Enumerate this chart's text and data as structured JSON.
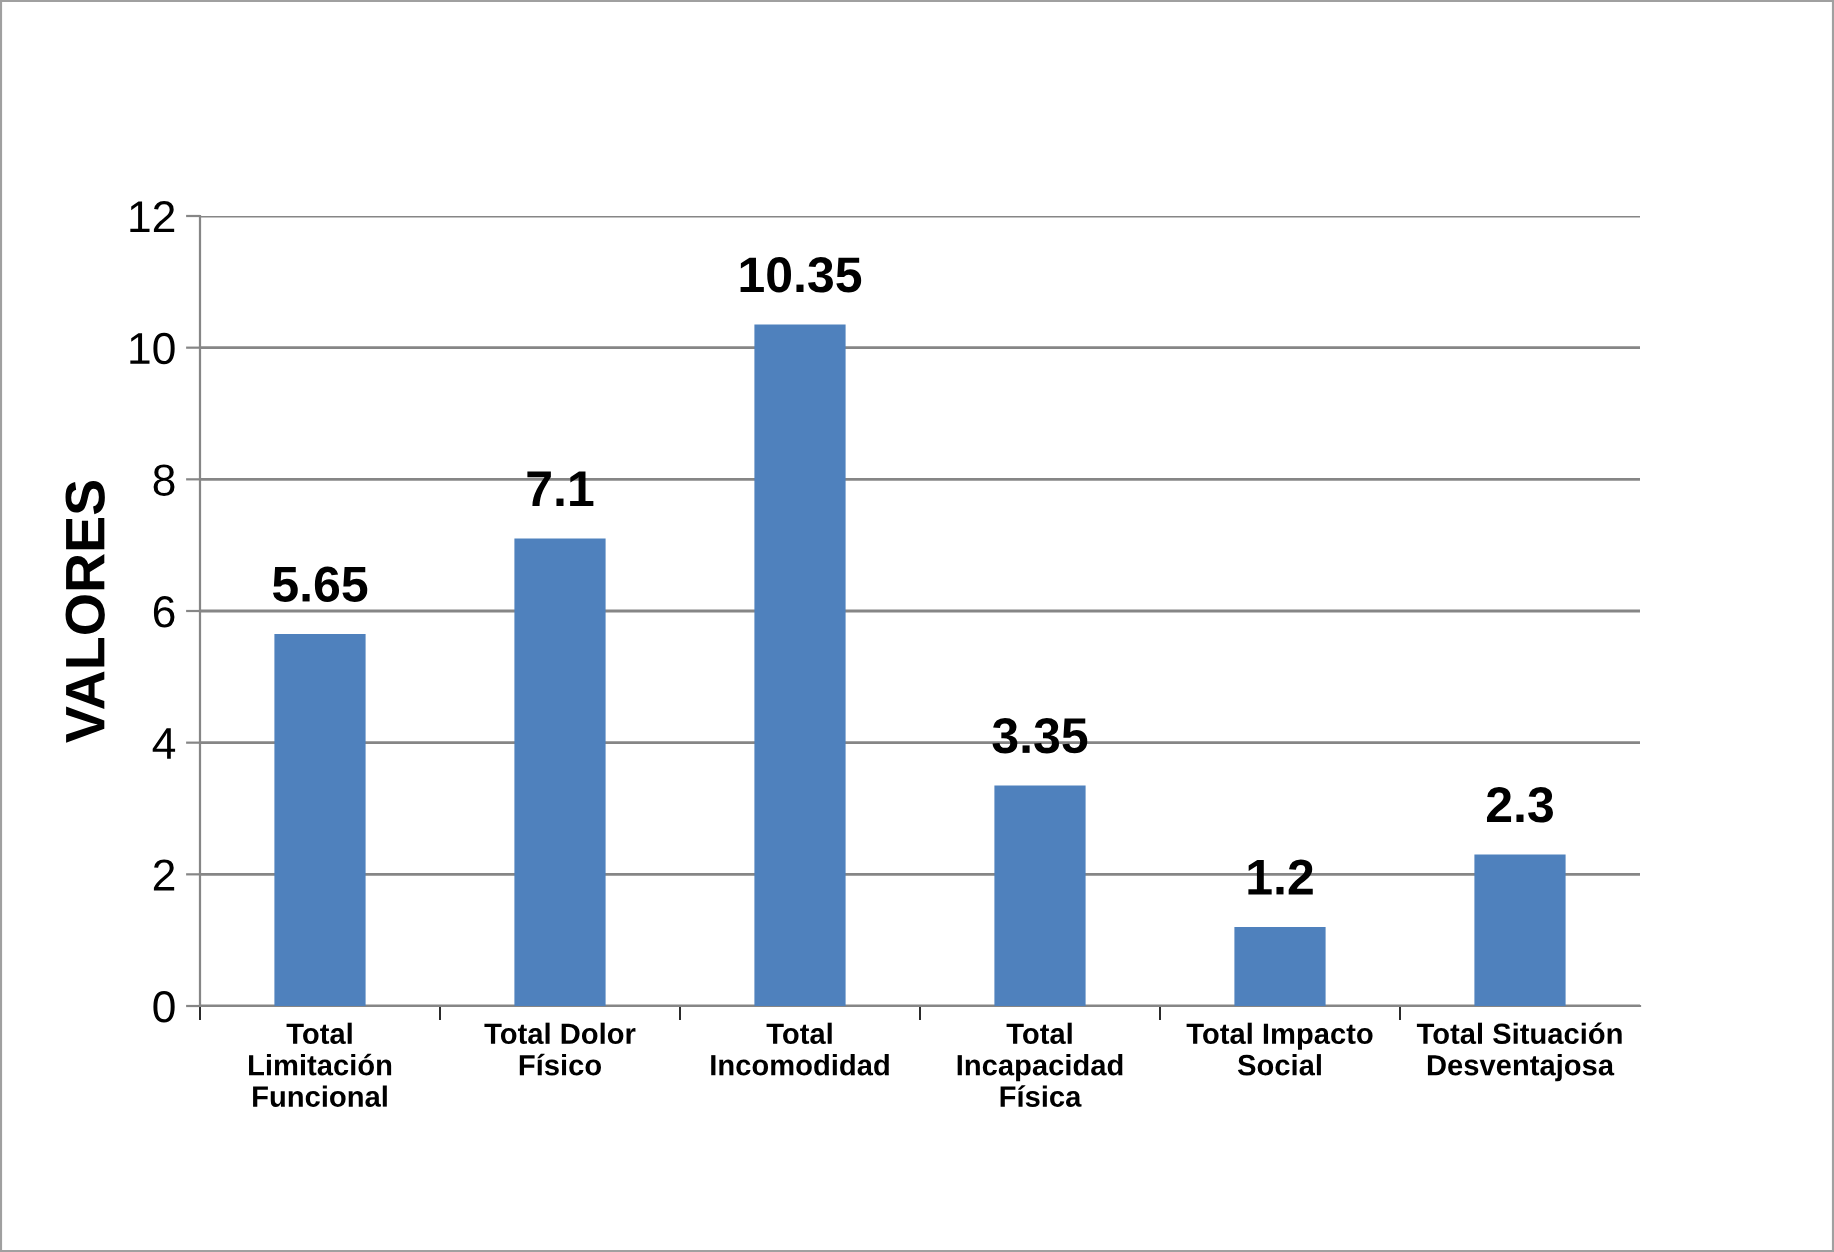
{
  "chart_data": {
    "type": "bar",
    "ylabel": "VALORES",
    "categories": [
      "Total\nLimitación\nFuncional",
      "Total Dolor\nFísico",
      "Total\nIncomodidad",
      "Total\nIncapacidad\nFísica",
      "Total Impacto\nSocial",
      "Total Situación\nDesventajosa"
    ],
    "values": [
      5.65,
      7.1,
      10.35,
      3.35,
      1.2,
      2.3
    ],
    "color": "#4f81bd",
    "ylim": [
      0,
      12
    ],
    "yticks": [
      0,
      2,
      4,
      6,
      8,
      10,
      12
    ],
    "grid": "y",
    "data_labels": true
  }
}
